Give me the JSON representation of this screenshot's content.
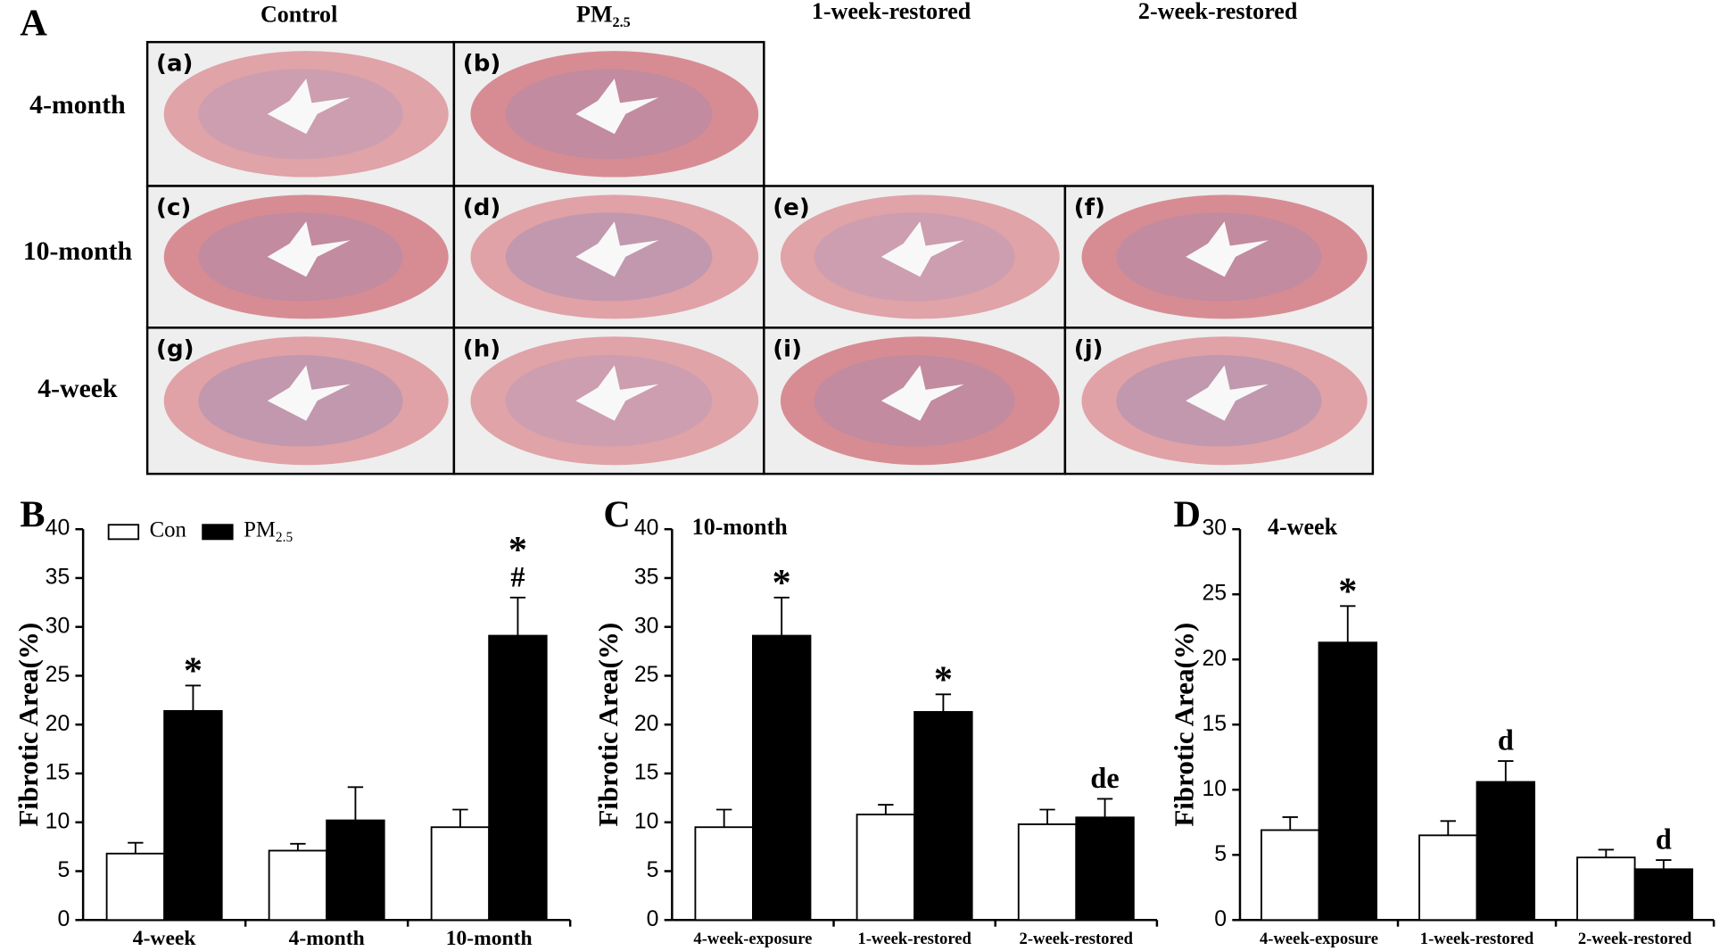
{
  "panel_a": {
    "panel_label": "A",
    "columns": [
      "Control",
      "PM2.5",
      "1-week-restored",
      "2-week-restored"
    ],
    "rows": [
      "4-month",
      "10-month",
      "4-week"
    ],
    "images": [
      [
        "(a)",
        "(b)",
        null,
        null
      ],
      [
        "(c)",
        "(d)",
        "(e)",
        "(f)"
      ],
      [
        "(g)",
        "(h)",
        "(i)",
        "(j)"
      ]
    ]
  },
  "chart_data": [
    {
      "type": "bar",
      "panel_label": "B",
      "y_label": "Fibrotic Area(%)",
      "categories": [
        "4-week",
        "4-month",
        "10-month"
      ],
      "series": [
        {
          "name": "Con",
          "color": "#ffffff",
          "values": [
            6.8,
            7.1,
            9.5
          ],
          "errors": [
            1.1,
            0.7,
            1.8
          ],
          "value_annotations": [
            null,
            null,
            null
          ]
        },
        {
          "name": "PM2.5",
          "color": "#000000",
          "values": [
            21.4,
            10.2,
            29.1
          ],
          "errors": [
            2.6,
            3.4,
            3.9
          ],
          "value_annotations": [
            [
              "*"
            ],
            null,
            [
              "*",
              "#"
            ]
          ]
        }
      ],
      "ylim": [
        0,
        40
      ],
      "yticks": [
        0,
        5,
        10,
        15,
        20,
        25,
        30,
        35,
        40
      ],
      "legend": "top-left"
    },
    {
      "type": "bar",
      "panel_label": "C",
      "subtitle": "10-month",
      "y_label": "Fibrotic Area(%)",
      "categories": [
        "4-week-exposure",
        "1-week-restored",
        "2-week-restored"
      ],
      "series": [
        {
          "color": "#ffffff",
          "values": [
            9.5,
            10.8,
            9.8
          ],
          "errors": [
            1.8,
            1.0,
            1.5
          ],
          "value_annotations": [
            null,
            null,
            null
          ]
        },
        {
          "color": "#000000",
          "values": [
            29.1,
            21.3,
            10.5
          ],
          "errors": [
            3.9,
            1.8,
            1.9
          ],
          "value_annotations": [
            [
              "*"
            ],
            [
              "*"
            ],
            [
              "de"
            ]
          ]
        }
      ],
      "ylim": [
        0,
        40
      ],
      "yticks": [
        0,
        5,
        10,
        15,
        20,
        25,
        30,
        35,
        40
      ]
    },
    {
      "type": "bar",
      "panel_label": "D",
      "subtitle": "4-week",
      "y_label": "Fibrotic Area(%)",
      "categories": [
        "4-week-exposure",
        "1-week-restored",
        "2-week-restored"
      ],
      "series": [
        {
          "color": "#ffffff",
          "values": [
            6.9,
            6.5,
            4.8
          ],
          "errors": [
            1.0,
            1.1,
            0.6
          ],
          "value_annotations": [
            null,
            null,
            null
          ]
        },
        {
          "color": "#000000",
          "values": [
            21.3,
            10.6,
            3.9
          ],
          "errors": [
            2.8,
            1.6,
            0.7
          ],
          "value_annotations": [
            [
              "*"
            ],
            [
              "d"
            ],
            [
              "d"
            ]
          ]
        }
      ],
      "ylim": [
        0,
        30
      ],
      "yticks": [
        0,
        5,
        10,
        15,
        20,
        25,
        30
      ]
    }
  ]
}
